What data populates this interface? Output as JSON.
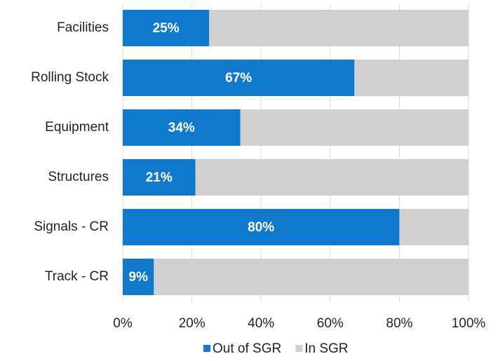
{
  "chart_data": {
    "type": "stacked_barh",
    "categories": [
      "Facilities",
      "Rolling Stock",
      "Equipment",
      "Structures",
      "Signals - CR",
      "Track - CR"
    ],
    "series": [
      {
        "name": "Out of SGR",
        "color": "#1179cc",
        "values": [
          25,
          67,
          34,
          21,
          80,
          9
        ],
        "value_labels": [
          "25%",
          "67%",
          "34%",
          "21%",
          "80%",
          "9%"
        ]
      },
      {
        "name": "In SGR",
        "color": "#d1d0d0",
        "values": [
          75,
          33,
          66,
          79,
          20,
          91
        ]
      }
    ],
    "xlim": [
      0,
      100
    ],
    "xticks": [
      {
        "value": 0,
        "label": "0%"
      },
      {
        "value": 20,
        "label": "20%"
      },
      {
        "value": 40,
        "label": "40%"
      },
      {
        "value": 60,
        "label": "60%"
      },
      {
        "value": 80,
        "label": "80%"
      },
      {
        "value": 100,
        "label": "100%"
      }
    ],
    "grid": true,
    "legend": "bottom"
  }
}
